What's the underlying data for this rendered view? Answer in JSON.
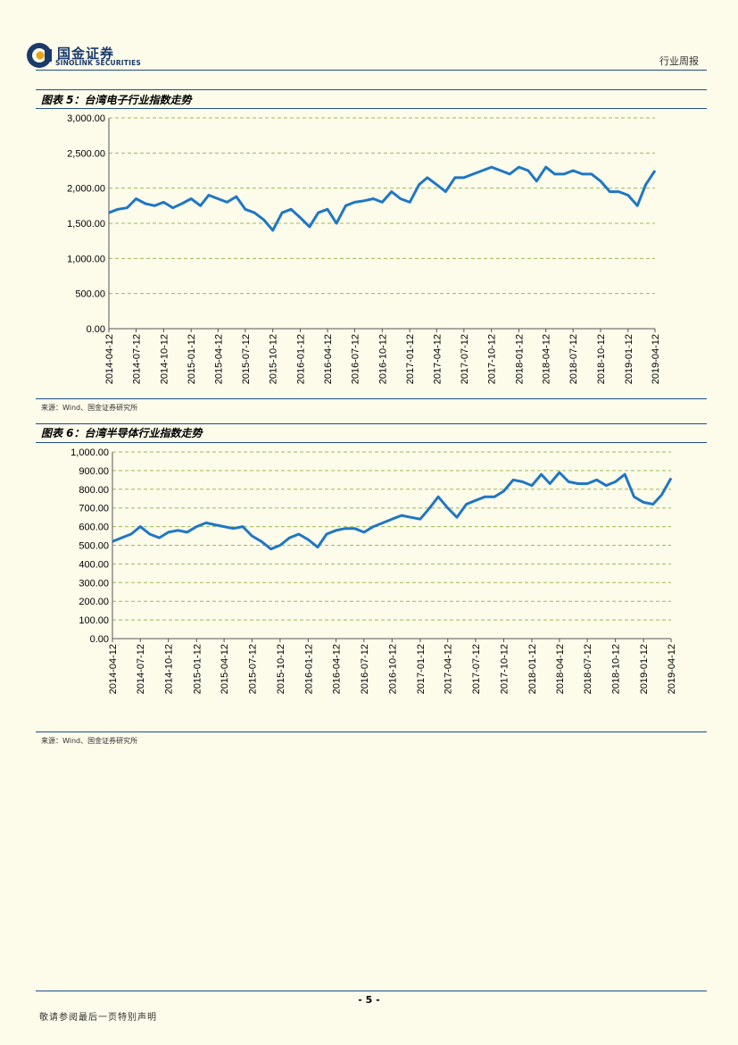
{
  "header": {
    "logo_cn": "国金证券",
    "logo_en": "SINOLINK SECURITIES",
    "report_type": "行业周报",
    "colors": {
      "brand": "#1a3a6b",
      "accent": "#e6a31a",
      "rule": "#1f4e8c"
    }
  },
  "figures": [
    {
      "title": "图表 5：台湾电子行业指数走势",
      "source": "来源：Wind、国金证券研究所"
    },
    {
      "title": "图表 6：台湾半导体行业指数走势",
      "source": "来源：Wind、国金证券研究所"
    }
  ],
  "chart_data": [
    {
      "type": "line",
      "title": "",
      "xlabel": "",
      "ylabel": "",
      "ylim": [
        0,
        3000
      ],
      "yticks": [
        "0.00",
        "500.00",
        "1,000.00",
        "1,500.00",
        "2,000.00",
        "2,500.00",
        "3,000.00"
      ],
      "xticks": [
        "2014-04-12",
        "2014-07-12",
        "2014-10-12",
        "2015-01-12",
        "2015-04-12",
        "2015-07-12",
        "2015-10-12",
        "2016-01-12",
        "2016-04-12",
        "2016-07-12",
        "2016-10-12",
        "2017-01-12",
        "2017-04-12",
        "2017-07-12",
        "2017-10-12",
        "2018-01-12",
        "2018-04-12",
        "2018-07-12",
        "2018-10-12",
        "2019-01-12",
        "2019-04-12"
      ],
      "grid": true,
      "line_color": "#1f77c4",
      "x": [
        "2014-04-12",
        "2014-05-12",
        "2014-06-12",
        "2014-07-12",
        "2014-08-12",
        "2014-09-12",
        "2014-10-12",
        "2014-11-12",
        "2014-12-12",
        "2015-01-12",
        "2015-02-12",
        "2015-03-12",
        "2015-04-12",
        "2015-05-12",
        "2015-06-12",
        "2015-07-12",
        "2015-08-12",
        "2015-09-12",
        "2015-10-12",
        "2015-11-12",
        "2015-12-12",
        "2016-01-12",
        "2016-02-12",
        "2016-03-12",
        "2016-04-12",
        "2016-05-12",
        "2016-06-12",
        "2016-07-12",
        "2016-08-12",
        "2016-09-12",
        "2016-10-12",
        "2016-11-12",
        "2016-12-12",
        "2017-01-12",
        "2017-02-12",
        "2017-03-12",
        "2017-04-12",
        "2017-05-12",
        "2017-06-12",
        "2017-07-12",
        "2017-08-12",
        "2017-09-12",
        "2017-10-12",
        "2017-11-12",
        "2017-12-12",
        "2018-01-12",
        "2018-02-12",
        "2018-03-12",
        "2018-04-12",
        "2018-05-12",
        "2018-06-12",
        "2018-07-12",
        "2018-08-12",
        "2018-09-12",
        "2018-10-12",
        "2018-11-12",
        "2018-12-12",
        "2019-01-12",
        "2019-02-12",
        "2019-03-12",
        "2019-04-12"
      ],
      "values": [
        1650,
        1700,
        1720,
        1850,
        1780,
        1750,
        1800,
        1720,
        1780,
        1850,
        1750,
        1900,
        1850,
        1800,
        1880,
        1700,
        1650,
        1550,
        1400,
        1650,
        1700,
        1580,
        1450,
        1650,
        1700,
        1500,
        1750,
        1800,
        1820,
        1850,
        1800,
        1950,
        1850,
        1800,
        2050,
        2150,
        2050,
        1950,
        2150,
        2150,
        2200,
        2250,
        2300,
        2250,
        2200,
        2300,
        2250,
        2100,
        2300,
        2200,
        2200,
        2250,
        2200,
        2200,
        2100,
        1950,
        1950,
        1900,
        1750,
        2050,
        2250
      ]
    },
    {
      "type": "line",
      "title": "",
      "xlabel": "",
      "ylabel": "",
      "ylim": [
        0,
        1000
      ],
      "yticks": [
        "0.00",
        "100.00",
        "200.00",
        "300.00",
        "400.00",
        "500.00",
        "600.00",
        "700.00",
        "800.00",
        "900.00",
        "1,000.00"
      ],
      "xticks": [
        "2014-04-12",
        "2014-07-12",
        "2014-10-12",
        "2015-01-12",
        "2015-04-12",
        "2015-07-12",
        "2015-10-12",
        "2016-01-12",
        "2016-04-12",
        "2016-07-12",
        "2016-10-12",
        "2017-01-12",
        "2017-04-12",
        "2017-07-12",
        "2017-10-12",
        "2018-01-12",
        "2018-04-12",
        "2018-07-12",
        "2018-10-12",
        "2019-01-12",
        "2019-04-12"
      ],
      "grid": true,
      "line_color": "#1f77c4",
      "x": [
        "2014-04-12",
        "2014-05-12",
        "2014-06-12",
        "2014-07-12",
        "2014-08-12",
        "2014-09-12",
        "2014-10-12",
        "2014-11-12",
        "2014-12-12",
        "2015-01-12",
        "2015-02-12",
        "2015-03-12",
        "2015-04-12",
        "2015-05-12",
        "2015-06-12",
        "2015-07-12",
        "2015-08-12",
        "2015-09-12",
        "2015-10-12",
        "2015-11-12",
        "2015-12-12",
        "2016-01-12",
        "2016-02-12",
        "2016-03-12",
        "2016-04-12",
        "2016-05-12",
        "2016-06-12",
        "2016-07-12",
        "2016-08-12",
        "2016-09-12",
        "2016-10-12",
        "2016-11-12",
        "2016-12-12",
        "2017-01-12",
        "2017-02-12",
        "2017-03-12",
        "2017-04-12",
        "2017-05-12",
        "2017-06-12",
        "2017-07-12",
        "2017-08-12",
        "2017-09-12",
        "2017-10-12",
        "2017-11-12",
        "2017-12-12",
        "2018-01-12",
        "2018-02-12",
        "2018-03-12",
        "2018-04-12",
        "2018-05-12",
        "2018-06-12",
        "2018-07-12",
        "2018-08-12",
        "2018-09-12",
        "2018-10-12",
        "2018-11-12",
        "2018-12-12",
        "2019-01-12",
        "2019-02-12",
        "2019-03-12",
        "2019-04-12"
      ],
      "values": [
        520,
        540,
        560,
        600,
        560,
        540,
        570,
        580,
        570,
        600,
        620,
        610,
        600,
        590,
        600,
        550,
        520,
        480,
        500,
        540,
        560,
        530,
        490,
        560,
        580,
        590,
        590,
        570,
        600,
        620,
        640,
        660,
        650,
        640,
        700,
        760,
        700,
        650,
        720,
        740,
        760,
        760,
        790,
        850,
        840,
        820,
        880,
        830,
        890,
        840,
        830,
        830,
        850,
        820,
        840,
        880,
        760,
        730,
        720,
        770,
        860
      ]
    }
  ]
}
